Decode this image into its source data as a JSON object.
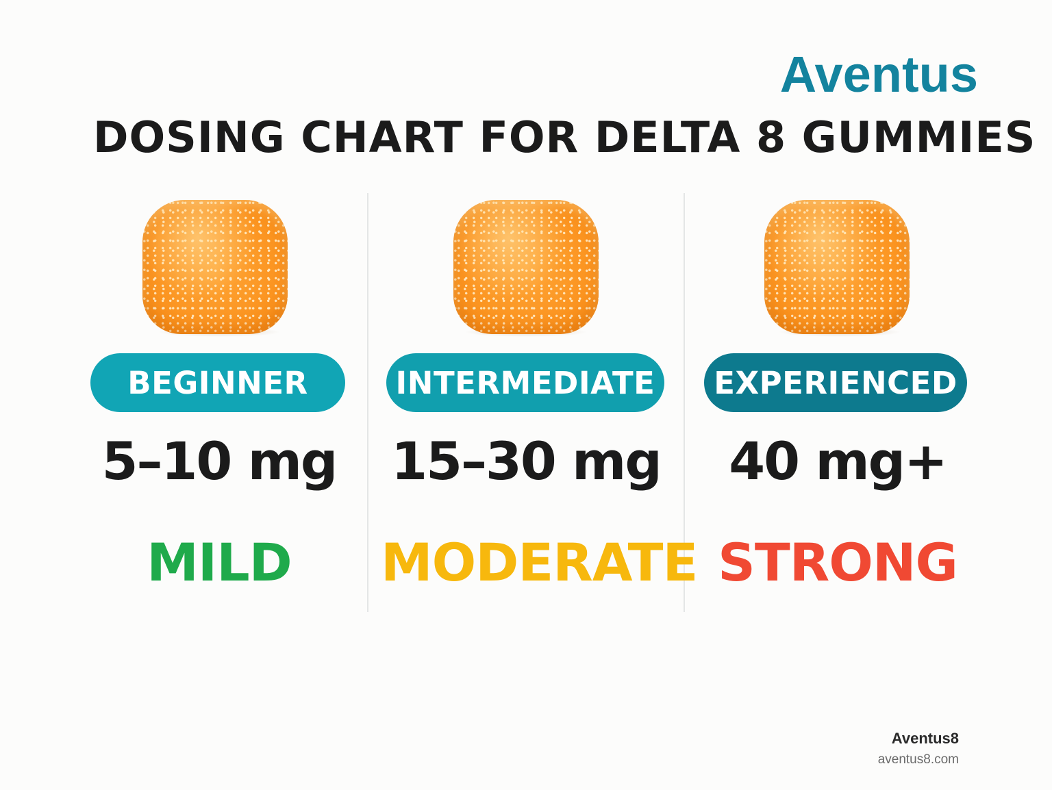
{
  "brand": {
    "name": "Aventus",
    "color": "#13839e"
  },
  "title": "DOSING CHART FOR DELTA 8 GUMMIES",
  "tiers": [
    {
      "level": "BEGINNER",
      "pill_color": "#11a5b5",
      "dose": "5–10 mg",
      "strength": "MILD",
      "strength_color": "#1faa4b",
      "image": "orange-gummy-icon"
    },
    {
      "level": "INTERMEDIATE",
      "pill_color": "#119fae",
      "dose": "15–30 mg",
      "strength": "MODERATE",
      "strength_color": "#f7b80d",
      "image": "orange-gummy-icon"
    },
    {
      "level": "EXPERIENCED",
      "pill_color": "#0d7a8e",
      "dose": "40 mg+",
      "strength": "STRONG",
      "strength_color": "#f04933",
      "image": "orange-gummy-icon"
    }
  ],
  "footer": {
    "brand": "Aventus8",
    "url": "aventus8.com"
  }
}
